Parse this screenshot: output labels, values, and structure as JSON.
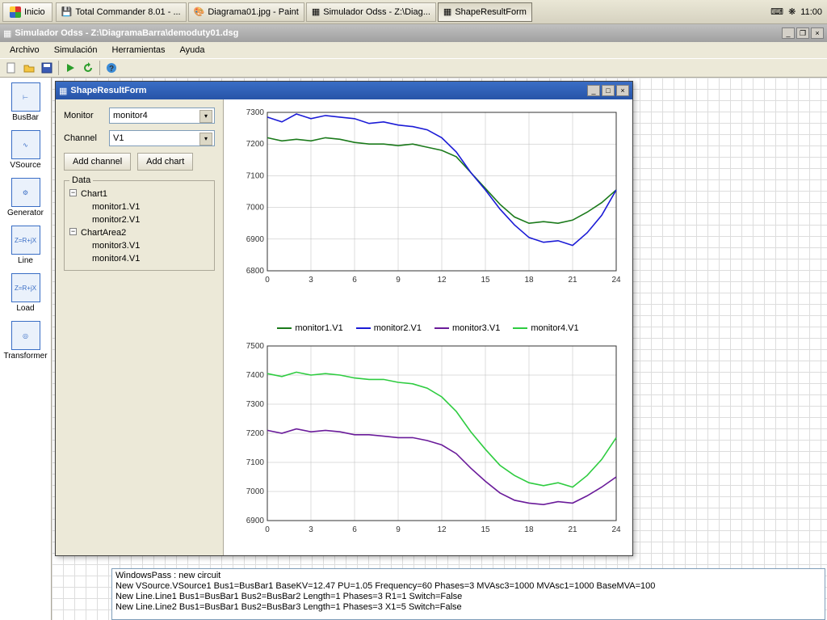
{
  "taskbar": {
    "start": "Inicio",
    "items": [
      {
        "label": "Total Commander 8.01 - ..."
      },
      {
        "label": "Diagrama01.jpg - Paint"
      },
      {
        "label": "Simulador Odss - Z:\\Diag..."
      },
      {
        "label": "ShapeResultForm"
      }
    ],
    "clock": "11:00"
  },
  "mainwin": {
    "title": "Simulador Odss - Z:\\DiagramaBarra\\demoduty01.dsg",
    "menu": [
      "Archivo",
      "Simulación",
      "Herramientas",
      "Ayuda"
    ],
    "palette": [
      "BusBar",
      "VSource",
      "Generator",
      "Line",
      "Load",
      "Transformer"
    ]
  },
  "log": [
    "WindowsPass : new circuit",
    "New VSource.VSource1 Bus1=BusBar1 BaseKV=12.47 PU=1.05 Frequency=60 Phases=3 MVAsc3=1000 MVAsc1=1000 BaseMVA=100",
    "New Line.Line1 Bus1=BusBar1 Bus2=BusBar2 Length=1 Phases=3 R1=1 Switch=False",
    "New Line.Line2 Bus1=BusBar1 Bus2=BusBar3 Length=1 Phases=3 X1=5 Switch=False"
  ],
  "shapewin": {
    "title": "ShapeResultForm",
    "labels": {
      "monitor": "Monitor",
      "channel": "Channel",
      "addchannel": "Add channel",
      "addchart": "Add chart",
      "data": "Data"
    },
    "monitor_value": "monitor4",
    "channel_value": "V1",
    "tree": [
      {
        "label": "Chart1",
        "children": [
          "monitor1.V1",
          "monitor2.V1"
        ]
      },
      {
        "label": "ChartArea2",
        "children": [
          "monitor3.V1",
          "monitor4.V1"
        ]
      }
    ]
  },
  "charts": {
    "x_ticks": [
      0,
      3,
      6,
      9,
      12,
      15,
      18,
      21,
      24
    ],
    "chart1": {
      "ylim": [
        6800,
        7300
      ],
      "yticks": [
        6800,
        6900,
        7000,
        7100,
        7200,
        7300
      ],
      "series": [
        {
          "name": "monitor1.V1",
          "color": "#1b7a1b",
          "data": [
            7220,
            7210,
            7215,
            7210,
            7220,
            7215,
            7205,
            7200,
            7200,
            7195,
            7200,
            7190,
            7180,
            7160,
            7110,
            7060,
            7010,
            6970,
            6950,
            6955,
            6950,
            6960,
            6985,
            7015,
            7055
          ]
        },
        {
          "name": "monitor2.V1",
          "color": "#1b1bd6",
          "data": [
            7285,
            7270,
            7295,
            7280,
            7290,
            7285,
            7280,
            7265,
            7270,
            7260,
            7255,
            7245,
            7220,
            7175,
            7110,
            7055,
            6995,
            6945,
            6905,
            6890,
            6895,
            6880,
            6920,
            6975,
            7055
          ]
        }
      ]
    },
    "legend": [
      {
        "name": "monitor1.V1",
        "color": "#1b7a1b"
      },
      {
        "name": "monitor2.V1",
        "color": "#1b1bd6"
      },
      {
        "name": "monitor3.V1",
        "color": "#6a1b9a"
      },
      {
        "name": "monitor4.V1",
        "color": "#2ecc40"
      }
    ],
    "chart2": {
      "ylim": [
        6900,
        7500
      ],
      "yticks": [
        6900,
        7000,
        7100,
        7200,
        7300,
        7400,
        7500
      ],
      "series": [
        {
          "name": "monitor3.V1",
          "color": "#6a1b9a",
          "data": [
            7210,
            7200,
            7215,
            7205,
            7210,
            7205,
            7195,
            7195,
            7190,
            7185,
            7185,
            7175,
            7160,
            7130,
            7080,
            7035,
            6995,
            6970,
            6960,
            6955,
            6965,
            6960,
            6985,
            7015,
            7050
          ]
        },
        {
          "name": "monitor4.V1",
          "color": "#2ecc40",
          "data": [
            7405,
            7395,
            7410,
            7400,
            7405,
            7400,
            7390,
            7385,
            7385,
            7375,
            7370,
            7355,
            7325,
            7275,
            7205,
            7145,
            7090,
            7055,
            7030,
            7020,
            7030,
            7015,
            7055,
            7110,
            7185
          ]
        }
      ]
    }
  }
}
